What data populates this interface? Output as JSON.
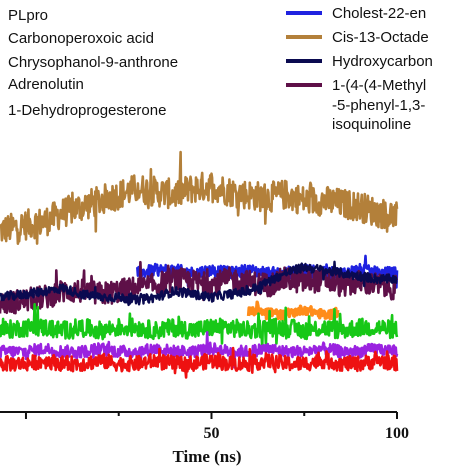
{
  "chart_data": {
    "type": "line",
    "title": "",
    "xlabel": "Time (ns)",
    "ylabel": "",
    "xlim": [
      -7,
      100
    ],
    "ylim": [
      0,
      1
    ],
    "xticks": [
      50,
      100
    ],
    "legend_placement": "top",
    "legend_left": [
      "PLpro",
      "Carbonoperoxoic acid",
      "Chrysophanol-9-anthrone",
      "Adrenolutin",
      "1-Dehydroprogesterone"
    ],
    "legend_right": [
      {
        "label": "Cholest-22-en",
        "color": "#1f22e0"
      },
      {
        "label": "Cis-13-Octade",
        "color": "#b3803a"
      },
      {
        "label": "Hydroxycarbon",
        "color": "#0a0a50"
      },
      {
        "label": "1-(4-(4-Methyl",
        "color": "#5e1048"
      },
      {
        "label": "-5-phenyl-1,3-",
        "color": null
      },
      {
        "label": "isoquinoline",
        "color": null
      }
    ],
    "series": [
      {
        "name": "Cis-13-Octade",
        "color": "#b3803a",
        "x": [
          -7,
          0,
          5,
          10,
          15,
          20,
          25,
          30,
          35,
          40,
          45,
          50,
          55,
          60,
          65,
          70,
          75,
          80,
          85,
          90,
          95,
          100
        ],
        "values": [
          0.6,
          0.62,
          0.63,
          0.66,
          0.68,
          0.7,
          0.72,
          0.74,
          0.73,
          0.72,
          0.74,
          0.75,
          0.73,
          0.72,
          0.71,
          0.72,
          0.7,
          0.7,
          0.69,
          0.68,
          0.66,
          0.65
        ],
        "noise": 0.05
      },
      {
        "name": "Cholest-22-en",
        "color": "#1f22e0",
        "x": [
          30,
          35,
          40,
          45,
          50,
          55,
          60,
          65,
          70,
          75,
          80,
          85,
          90,
          95,
          100
        ],
        "values": [
          0.46,
          0.47,
          0.47,
          0.46,
          0.47,
          0.46,
          0.47,
          0.46,
          0.46,
          0.47,
          0.46,
          0.46,
          0.47,
          0.46,
          0.46
        ],
        "noise": 0.02
      },
      {
        "name": "1-(4-(4-Methyl",
        "color": "#5e1048",
        "x": [
          -7,
          0,
          5,
          10,
          15,
          20,
          25,
          30,
          35,
          40,
          45,
          50,
          55,
          60,
          65,
          70,
          75,
          80,
          85,
          90,
          95,
          100
        ],
        "values": [
          0.36,
          0.37,
          0.38,
          0.4,
          0.4,
          0.39,
          0.4,
          0.41,
          0.42,
          0.44,
          0.43,
          0.42,
          0.44,
          0.43,
          0.42,
          0.44,
          0.43,
          0.44,
          0.42,
          0.43,
          0.42,
          0.41
        ],
        "noise": 0.04
      },
      {
        "name": "Hydroxycarbon",
        "color": "#0a0a50",
        "x": [
          -7,
          0,
          5,
          10,
          15,
          20,
          25,
          30,
          35,
          40,
          45,
          50,
          55,
          60,
          65,
          70,
          75,
          80,
          85,
          90,
          95,
          100
        ],
        "values": [
          0.38,
          0.39,
          0.4,
          0.41,
          0.39,
          0.38,
          0.38,
          0.37,
          0.38,
          0.4,
          0.39,
          0.38,
          0.39,
          0.4,
          0.43,
          0.46,
          0.48,
          0.47,
          0.46,
          0.45,
          0.44,
          0.44
        ],
        "noise": 0.015
      },
      {
        "name": "orange",
        "color": "#ff8c1a",
        "x": [
          60,
          63,
          66,
          69,
          72,
          75,
          78,
          81,
          84
        ],
        "values": [
          0.33,
          0.34,
          0.33,
          0.32,
          0.33,
          0.34,
          0.33,
          0.32,
          0.33
        ],
        "noise": 0.015
      },
      {
        "name": "green",
        "color": "#17c817",
        "x": [
          -7,
          0,
          5,
          10,
          15,
          20,
          25,
          30,
          35,
          40,
          45,
          50,
          55,
          60,
          65,
          70,
          75,
          80,
          85,
          90,
          95,
          100
        ],
        "values": [
          0.27,
          0.28,
          0.28,
          0.27,
          0.28,
          0.27,
          0.28,
          0.28,
          0.27,
          0.28,
          0.27,
          0.28,
          0.28,
          0.27,
          0.28,
          0.28,
          0.27,
          0.28,
          0.27,
          0.28,
          0.28,
          0.27
        ],
        "noise": 0.03
      },
      {
        "name": "violet",
        "color": "#9a22e0",
        "x": [
          -7,
          0,
          5,
          10,
          15,
          20,
          25,
          30,
          35,
          40,
          45,
          50,
          55,
          60,
          65,
          70,
          75,
          80,
          85,
          90,
          95,
          100
        ],
        "values": [
          0.2,
          0.2,
          0.21,
          0.2,
          0.2,
          0.21,
          0.2,
          0.2,
          0.21,
          0.2,
          0.2,
          0.21,
          0.2,
          0.2,
          0.21,
          0.2,
          0.2,
          0.21,
          0.2,
          0.2,
          0.21,
          0.2
        ],
        "noise": 0.02
      },
      {
        "name": "red",
        "color": "#ee1111",
        "x": [
          -7,
          0,
          5,
          10,
          15,
          20,
          25,
          30,
          35,
          40,
          45,
          50,
          55,
          60,
          65,
          70,
          75,
          80,
          85,
          90,
          95,
          100
        ],
        "values": [
          0.16,
          0.16,
          0.17,
          0.16,
          0.16,
          0.17,
          0.16,
          0.16,
          0.17,
          0.16,
          0.16,
          0.17,
          0.16,
          0.16,
          0.17,
          0.16,
          0.16,
          0.17,
          0.16,
          0.16,
          0.17,
          0.16
        ],
        "noise": 0.025
      }
    ]
  }
}
